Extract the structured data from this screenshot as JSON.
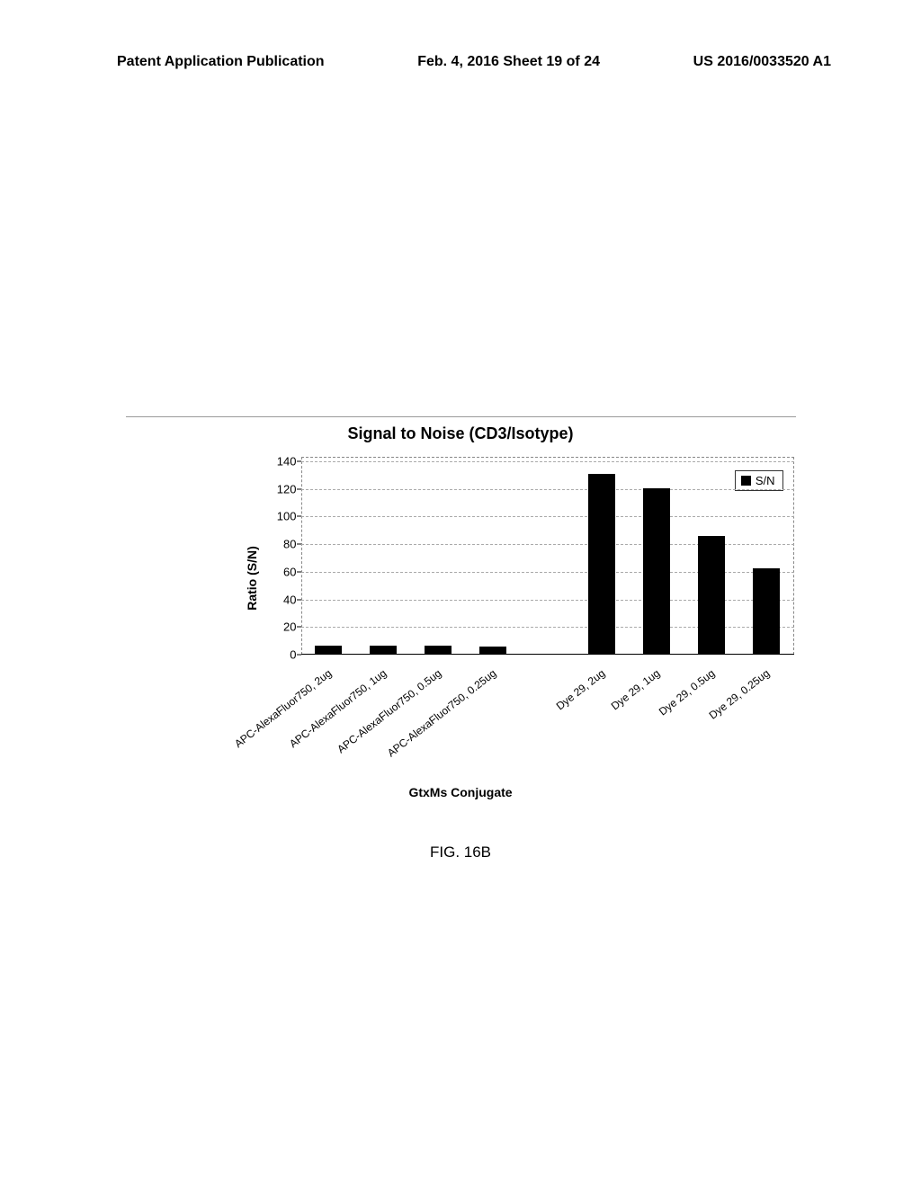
{
  "header": {
    "left": "Patent Application Publication",
    "center": "Feb. 4, 2016  Sheet 19 of 24",
    "right": "US 2016/0033520 A1"
  },
  "chart": {
    "type": "bar",
    "title": "Signal to Noise (CD3/Isotype)",
    "ylabel": "Ratio (S/N)",
    "xlabel": "GtxMs Conjugate",
    "ylim": [
      0,
      140
    ],
    "ytick_step": 20,
    "yticks": [
      0,
      20,
      40,
      60,
      80,
      100,
      120,
      140
    ],
    "background_color": "#ffffff",
    "grid_color": "#aaaaaa",
    "bar_color": "#000000",
    "title_fontsize": 18,
    "label_fontsize": 14,
    "tick_fontsize": 13,
    "xlabel_fontsize": 12,
    "bar_width_pct": 5.5,
    "categories": [
      "APC-AlexaFluor750, 2ug",
      "APC-AlexaFluor750, 1ug",
      "APC-AlexaFluor750, 0.5ug",
      "APC-AlexaFluor750, 0.25ug",
      "",
      "Dye 29, 2ug",
      "Dye 29, 1ug",
      "Dye 29, 0.5ug",
      "Dye 29, 0.25ug"
    ],
    "values": [
      6,
      6,
      6,
      5.5,
      null,
      130,
      120,
      85,
      62
    ],
    "legend_label": "S/N"
  },
  "figure_label": "FIG. 16B"
}
